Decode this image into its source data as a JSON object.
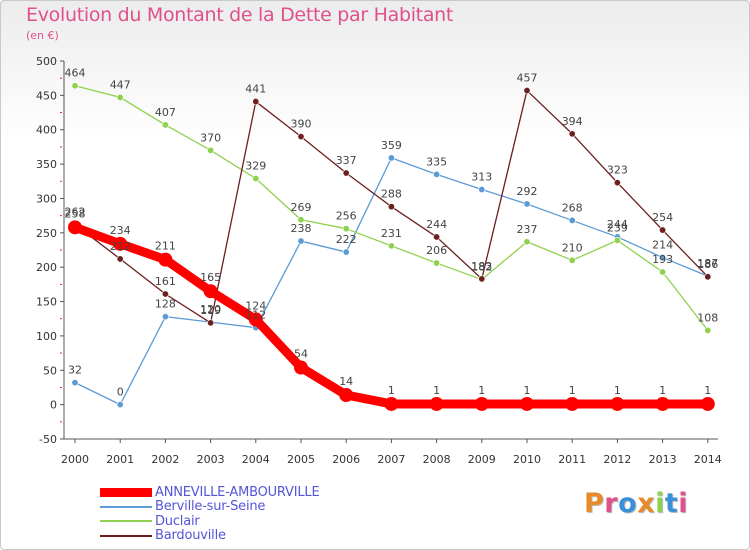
{
  "title": "Evolution du Montant de la Dette par Habitant",
  "unit": "(en €)",
  "logo": "Proxiti",
  "colors": {
    "ANNEVILLE-AMBOURVILLE": "#ff0000",
    "Berville-sur-Seine": "#5b9bd5",
    "Duclair": "#8fd14f",
    "Bardouville": "#6b1f1f",
    "logo_letters": [
      "#e88a2a",
      "#e0508a",
      "#3a8fd8",
      "#e88a2a",
      "#8fd14f",
      "#3a8fd8",
      "#e0508a"
    ]
  },
  "chart_data": {
    "type": "line",
    "title": "Evolution du Montant de la Dette par Habitant",
    "ylabel": "(en €)",
    "xlabel": "",
    "ylim": [
      -50,
      500
    ],
    "yticks": [
      -50,
      0,
      50,
      100,
      150,
      200,
      250,
      300,
      350,
      400,
      450,
      500
    ],
    "grid": false,
    "legend_position": "bottom-left",
    "x": [
      "2000",
      "2001",
      "2002",
      "2003",
      "2004",
      "2005",
      "2006",
      "2007",
      "2008",
      "2009",
      "2010",
      "2011",
      "2012",
      "2013",
      "2014"
    ],
    "series": [
      {
        "name": "ANNEVILLE-AMBOURVILLE",
        "values": [
          258,
          234,
          211,
          165,
          124,
          54,
          14,
          1,
          1,
          1,
          1,
          1,
          1,
          1,
          1
        ]
      },
      {
        "name": "Berville-sur-Seine",
        "values": [
          32,
          0,
          128,
          120,
          112,
          238,
          222,
          359,
          335,
          313,
          292,
          268,
          244,
          214,
          187
        ]
      },
      {
        "name": "Duclair",
        "values": [
          464,
          447,
          407,
          370,
          329,
          269,
          256,
          231,
          206,
          182,
          237,
          210,
          239,
          193,
          108
        ]
      },
      {
        "name": "Bardouville",
        "values": [
          262,
          212,
          161,
          119,
          441,
          390,
          337,
          288,
          244,
          183,
          457,
          394,
          323,
          254,
          186
        ]
      }
    ]
  }
}
